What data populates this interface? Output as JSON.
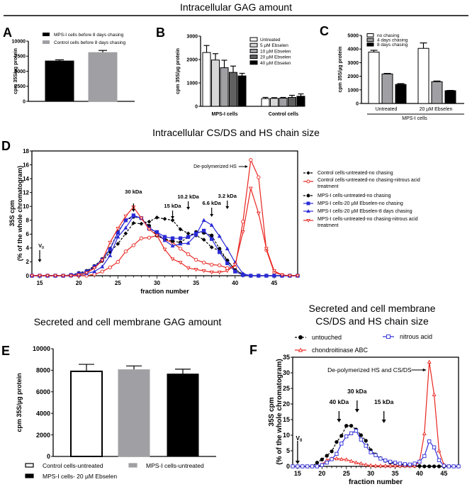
{
  "section_titles": {
    "top": "Intracellular GAG amount",
    "middle": "Intracellular CS/DS and HS chain size",
    "bottom_left": "Secreted and cell membrane GAG amount",
    "bottom_right_line1": "Secreted and cell membrane",
    "bottom_right_line2": "CS/DS and HS chain size"
  },
  "chart_data": [
    {
      "panel": "A",
      "type": "bar",
      "title": "",
      "ylabel": "cpm 35S/µg protein",
      "ylim": [
        0,
        10000
      ],
      "yticks": [
        0,
        2500,
        5000,
        7500,
        10000
      ],
      "categories": [
        "MPS-I cells before 8 days chasing",
        "Control cells before 8 days chasing"
      ],
      "values": [
        6700,
        8100
      ],
      "errors": [
        200,
        350
      ],
      "colors": [
        "#000000",
        "#a0a0a4"
      ],
      "legend": [
        "MPS-I cells before 8 days chasing",
        "Control cells before 8 days chasing"
      ],
      "legend_position": "top"
    },
    {
      "panel": "B",
      "type": "bar",
      "ylabel": "cpm 35S/µg protein",
      "ylim": [
        0,
        3000
      ],
      "yticks": [
        0,
        1000,
        2000,
        3000
      ],
      "categories": [
        "MPS-I cells",
        "Control cells"
      ],
      "series": [
        {
          "name": "Untreated",
          "values": [
            2300,
            330
          ],
          "errors": [
            300,
            50
          ],
          "color": "#ffffff"
        },
        {
          "name": "5 µM Ebselen",
          "values": [
            1980,
            340
          ],
          "errors": [
            270,
            30
          ],
          "color": "#d8d8d8"
        },
        {
          "name": "10 µM Ebselen",
          "values": [
            1650,
            350
          ],
          "errors": [
            320,
            30
          ],
          "color": "#a0a0a4"
        },
        {
          "name": "20 µM Ebselen",
          "values": [
            1450,
            380
          ],
          "errors": [
            270,
            90
          ],
          "color": "#606060"
        },
        {
          "name": "40 µM Ebselen",
          "values": [
            1300,
            430
          ],
          "errors": [
            110,
            100
          ],
          "color": "#000000"
        }
      ],
      "legend_position": "top-right"
    },
    {
      "panel": "C",
      "type": "bar",
      "ylabel": "cpm 35S/µg protein",
      "ylim": [
        0,
        5000
      ],
      "yticks": [
        0,
        1000,
        2000,
        3000,
        4000,
        5000
      ],
      "categories": [
        "Untreated",
        "20 µM Ebselen"
      ],
      "group_label": "MPS-I cells",
      "series": [
        {
          "name": "no chasing",
          "values": [
            3780,
            4050
          ],
          "errors": [
            130,
            400
          ],
          "color": "#ffffff"
        },
        {
          "name": "4 days chasing",
          "values": [
            2170,
            1600
          ],
          "errors": [
            40,
            50
          ],
          "color": "#a0a0a4"
        },
        {
          "name": "8 days chasing",
          "values": [
            1400,
            940
          ],
          "errors": [
            60,
            20
          ],
          "color": "#000000"
        }
      ],
      "legend_position": "top"
    },
    {
      "panel": "D",
      "type": "line",
      "xlabel": "fraction number",
      "ylabel": "35S cpm (% of the whole chromatogram)",
      "xlim": [
        14,
        48
      ],
      "ylim": [
        0,
        18
      ],
      "xticks": [
        15,
        20,
        25,
        30,
        35,
        40,
        45
      ],
      "yticks": [
        0,
        2,
        4,
        6,
        8,
        10,
        12,
        14,
        16,
        18
      ],
      "x": [
        14,
        15,
        16,
        17,
        18,
        19,
        20,
        21,
        22,
        23,
        24,
        25,
        26,
        27,
        28,
        29,
        30,
        31,
        32,
        33,
        34,
        35,
        36,
        37,
        38,
        39,
        40,
        41,
        42,
        43,
        44,
        45,
        46,
        47,
        48
      ],
      "series": [
        {
          "name": "Control cells-untreated-no chasing",
          "color": "#000000",
          "marker": "diamond",
          "dash": true,
          "values": [
            0,
            0,
            0,
            0,
            0,
            0.1,
            0.3,
            0.5,
            1.2,
            2.1,
            3.4,
            4.6,
            6.1,
            7.6,
            7.5,
            7.8,
            8.4,
            8.2,
            8.0,
            6.7,
            6.1,
            5.8,
            5.2,
            4.1,
            3.6,
            2.2,
            0.9,
            0.2,
            0,
            0,
            0,
            0,
            0,
            0,
            0
          ]
        },
        {
          "name": "Control cells-untreated-no chasing-nitrous acid treatment",
          "color": "#e8251f",
          "marker": "circle-open",
          "dash": false,
          "values": [
            0,
            0,
            0,
            0,
            0,
            0,
            0,
            0,
            0.2,
            0.6,
            1.2,
            2.0,
            3.5,
            4.4,
            5.4,
            5.5,
            5.8,
            5.2,
            4.8,
            3.9,
            3.1,
            2.3,
            1.9,
            1.6,
            1.5,
            1.1,
            1.2,
            7.8,
            16.7,
            14.2,
            3.7,
            0.5,
            0.1,
            0,
            0
          ]
        },
        {
          "name": "MPS-I cells-untreated-no chasing",
          "color": "#000000",
          "marker": "circle",
          "dash": true,
          "values": [
            0,
            0,
            0,
            0,
            0,
            0.1,
            0.4,
            0.7,
            1.4,
            2.4,
            3.9,
            6.3,
            8.0,
            8.5,
            8.3,
            7.2,
            5.8,
            5.3,
            5.0,
            4.8,
            5.6,
            6.3,
            6.2,
            5.8,
            3.9,
            2.2,
            0.8,
            0.2,
            0,
            0,
            0,
            0,
            0,
            0,
            0
          ]
        },
        {
          "name": "MPS-I cells-20 µM Ebselen-no chasing",
          "color": "#2b2bd6",
          "marker": "square",
          "dash": false,
          "values": [
            0,
            0,
            0,
            0,
            0,
            0.1,
            0.3,
            0.6,
            1.3,
            2.3,
            3.8,
            6.2,
            8.0,
            8.7,
            8.3,
            6.8,
            6.3,
            5.6,
            5.4,
            5.4,
            5.6,
            6.1,
            6.5,
            5.3,
            3.4,
            1.8,
            0.6,
            0.1,
            0,
            0,
            0,
            0,
            0,
            0,
            0
          ]
        },
        {
          "name": "MPS-I cells-20 µM Ebselen-8 days chasing",
          "color": "#2b2bd6",
          "marker": "triangle",
          "dash": false,
          "values": [
            0,
            0,
            0,
            0,
            0,
            0,
            0.1,
            0.3,
            0.6,
            1.3,
            2.9,
            5.6,
            6.9,
            8.6,
            8.3,
            6.9,
            6.2,
            5.1,
            4.3,
            4.6,
            4.7,
            5.9,
            8.0,
            7.3,
            5.7,
            3.9,
            1.9,
            0.3,
            0,
            0,
            0,
            0,
            0,
            0,
            0
          ]
        },
        {
          "name": "MPS-I cells-untreated-no chasing-nitrous acid treatment",
          "color": "#e8251f",
          "marker": "triangle-down-open",
          "dash": false,
          "values": [
            0,
            0,
            0,
            0,
            0,
            0,
            0.1,
            0.4,
            1.1,
            2.2,
            4.8,
            6.8,
            8.6,
            9.9,
            8.3,
            6.7,
            5.8,
            3.8,
            2.4,
            1.9,
            1.1,
            0.9,
            0.7,
            0.5,
            0.5,
            0.7,
            1.6,
            6.3,
            12.6,
            9.0,
            3.9,
            0.7,
            0.1,
            0,
            0
          ]
        }
      ],
      "annotations": [
        {
          "text": "V0",
          "x": 15
        },
        {
          "text": "30 kDa",
          "x": 27
        },
        {
          "text": "15 kDa",
          "x": 32
        },
        {
          "text": "10.2 kDa",
          "x": 34
        },
        {
          "text": "6.6 kDa",
          "x": 37
        },
        {
          "text": "3.2 kDa",
          "x": 39
        },
        {
          "text": "De-polymerized HS",
          "x": 42
        }
      ],
      "legend_position": "right"
    },
    {
      "panel": "E",
      "type": "bar",
      "ylabel": "cpm 35S/µg protein",
      "ylim": [
        0,
        10000
      ],
      "yticks": [
        0,
        2000,
        4000,
        6000,
        8000,
        10000
      ],
      "categories": [
        "Control cells-untreated",
        "MPS-I cells-untreated",
        "MPS-I cells- 20 µM Ebselen"
      ],
      "values": [
        7900,
        8050,
        7650
      ],
      "errors": [
        650,
        350,
        450
      ],
      "colors": [
        "#ffffff",
        "#a0a0a4",
        "#000000"
      ],
      "legend": [
        "Control cells-untreated",
        "MPS-I cells-untreated",
        "MPS-I cells- 20 µM Ebselen"
      ],
      "legend_position": "bottom"
    },
    {
      "panel": "F",
      "type": "line",
      "xlabel": "fraction number",
      "ylabel": "35S cpm (% of the whole chromatogram)",
      "xlim": [
        14,
        48
      ],
      "ylim": [
        0,
        35
      ],
      "xticks": [
        15,
        20,
        25,
        30,
        35,
        40,
        45
      ],
      "yticks": [
        0,
        5,
        10,
        15,
        20,
        25,
        30,
        35
      ],
      "x": [
        14,
        15,
        16,
        17,
        18,
        19,
        20,
        21,
        22,
        23,
        24,
        25,
        26,
        27,
        28,
        29,
        30,
        31,
        32,
        33,
        34,
        35,
        36,
        37,
        38,
        39,
        40,
        41,
        42,
        43,
        44,
        45,
        46,
        47,
        48
      ],
      "series": [
        {
          "name": "untouched",
          "color": "#000000",
          "marker": "circle",
          "dash": true,
          "values": [
            0,
            0,
            0,
            0,
            0,
            1.2,
            2.2,
            3.4,
            4.8,
            7.8,
            9.8,
            13.0,
            13.0,
            11.8,
            10.0,
            8.2,
            5.2,
            3.8,
            2.6,
            1.8,
            1.2,
            0.9,
            0.7,
            0.5,
            0.3,
            0.2,
            0.1,
            0,
            0,
            0,
            0,
            0,
            0,
            0,
            0
          ]
        },
        {
          "name": "chondroitinase ABC",
          "color": "#e8251f",
          "marker": "triangle-open",
          "dash": false,
          "values": [
            0,
            0,
            0,
            0,
            0,
            0,
            0.6,
            2.0,
            2.5,
            2.5,
            2.3,
            2.2,
            1.7,
            1.2,
            0.9,
            0.5,
            0.3,
            0.2,
            0.2,
            0.2,
            0.2,
            0.2,
            0.2,
            0.2,
            0.2,
            0.2,
            1.5,
            10.5,
            33.5,
            23.0,
            5.0,
            0.5,
            0,
            0,
            0
          ]
        },
        {
          "name": "nitrous acid",
          "color": "#2b2bd6",
          "marker": "square-open",
          "dash": false,
          "values": [
            0,
            0,
            0,
            0,
            0,
            0,
            0.4,
            1.2,
            2.3,
            4.0,
            7.3,
            9.6,
            10.6,
            11.4,
            8.6,
            6.6,
            4.5,
            3.6,
            2.5,
            1.9,
            1.5,
            1.2,
            0.9,
            0.7,
            0.6,
            0.9,
            1.5,
            3.3,
            8.0,
            6.1,
            2.0,
            0.2,
            0,
            0,
            0
          ]
        }
      ],
      "annotations": [
        {
          "text": "V0",
          "x": 15
        },
        {
          "text": "40 kDa",
          "x": 23.5
        },
        {
          "text": "30 kDa",
          "x": 27.2
        },
        {
          "text": "15 kDa",
          "x": 32.7
        },
        {
          "text": "De-polymerized HS and CS/DS",
          "x": 42
        }
      ],
      "legend_position": "top"
    }
  ]
}
